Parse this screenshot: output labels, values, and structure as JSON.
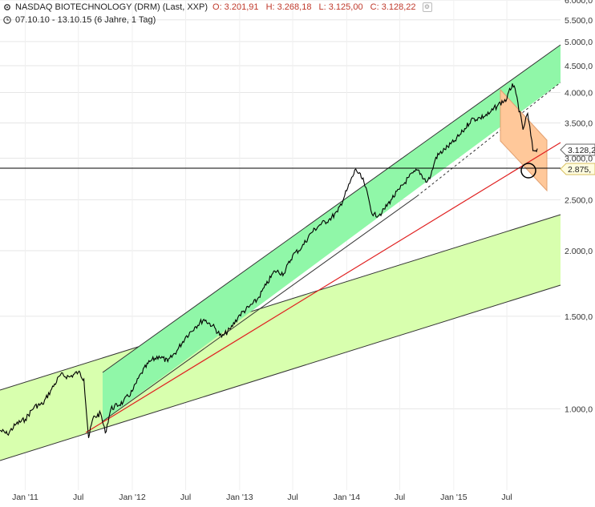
{
  "header": {
    "title": "NASDAQ BIOTECHNOLOGY (DRM) (Last, XXP)",
    "open": "O: 3.201,91",
    "high": "H: 3.268,18",
    "low": "L: 3.125,00",
    "close": "C: 3.128,22",
    "range": "07.10.10 - 13.10.15 (6 Jahre, 1 Tag)",
    "settings_icon": "gear-icon",
    "clock_icon": "clock-icon"
  },
  "chart_data": {
    "type": "line",
    "title": "NASDAQ BIOTECHNOLOGY (DRM) (Last, XXP)",
    "y_scale": "log",
    "ylim": [
      700,
      6000
    ],
    "y_ticks": [
      {
        "value": 1000,
        "label": "1.000,0"
      },
      {
        "value": 1500,
        "label": "1.500,0"
      },
      {
        "value": 2000,
        "label": "2.000,0"
      },
      {
        "value": 2500,
        "label": "2.500,0"
      },
      {
        "value": 3000,
        "label": "3.000,0"
      },
      {
        "value": 3500,
        "label": "3.500,0"
      },
      {
        "value": 4000,
        "label": "4.000,0"
      },
      {
        "value": 4500,
        "label": "4.500,0"
      },
      {
        "value": 5000,
        "label": "5.000,0"
      },
      {
        "value": 5500,
        "label": "5.500,0"
      },
      {
        "value": 6000,
        "label": "6.000,0"
      }
    ],
    "xlim": [
      "2010-10-07",
      "2015-12-31"
    ],
    "x_ticks": [
      {
        "value": "2011-01-01",
        "label": "Jan '11"
      },
      {
        "value": "2011-07-01",
        "label": "Jul"
      },
      {
        "value": "2012-01-01",
        "label": "Jan '12"
      },
      {
        "value": "2012-07-01",
        "label": "Jul"
      },
      {
        "value": "2013-01-01",
        "label": "Jan '13"
      },
      {
        "value": "2013-07-01",
        "label": "Jul"
      },
      {
        "value": "2014-01-01",
        "label": "Jan '14"
      },
      {
        "value": "2014-07-01",
        "label": "Jul"
      },
      {
        "value": "2015-01-01",
        "label": "Jan '15"
      },
      {
        "value": "2015-07-01",
        "label": "Jul"
      }
    ],
    "series": [
      {
        "color": "#000000",
        "points": [
          [
            "2010-10-07",
            910
          ],
          [
            "2010-11-01",
            895
          ],
          [
            "2010-12-01",
            935
          ],
          [
            "2011-01-01",
            955
          ],
          [
            "2011-02-01",
            1010
          ],
          [
            "2011-03-01",
            1020
          ],
          [
            "2011-04-01",
            1090
          ],
          [
            "2011-05-01",
            1160
          ],
          [
            "2011-06-01",
            1150
          ],
          [
            "2011-07-01",
            1175
          ],
          [
            "2011-07-20",
            1140
          ],
          [
            "2011-08-05",
            880
          ],
          [
            "2011-08-20",
            960
          ],
          [
            "2011-09-15",
            980
          ],
          [
            "2011-10-01",
            900
          ],
          [
            "2011-10-20",
            1000
          ],
          [
            "2011-12-01",
            1030
          ],
          [
            "2012-01-01",
            1080
          ],
          [
            "2012-02-01",
            1170
          ],
          [
            "2012-03-01",
            1230
          ],
          [
            "2012-04-01",
            1260
          ],
          [
            "2012-05-01",
            1230
          ],
          [
            "2012-06-01",
            1290
          ],
          [
            "2012-07-01",
            1370
          ],
          [
            "2012-08-01",
            1430
          ],
          [
            "2012-09-01",
            1480
          ],
          [
            "2012-10-01",
            1440
          ],
          [
            "2012-11-01",
            1370
          ],
          [
            "2012-12-01",
            1420
          ],
          [
            "2013-01-01",
            1510
          ],
          [
            "2013-02-01",
            1560
          ],
          [
            "2013-03-01",
            1610
          ],
          [
            "2013-04-01",
            1720
          ],
          [
            "2013-05-01",
            1830
          ],
          [
            "2013-06-01",
            1810
          ],
          [
            "2013-07-01",
            1960
          ],
          [
            "2013-08-01",
            2030
          ],
          [
            "2013-09-01",
            2160
          ],
          [
            "2013-10-01",
            2240
          ],
          [
            "2013-11-01",
            2290
          ],
          [
            "2013-12-01",
            2370
          ],
          [
            "2014-01-01",
            2600
          ],
          [
            "2014-02-01",
            2860
          ],
          [
            "2014-03-01",
            2700
          ],
          [
            "2014-04-01",
            2330
          ],
          [
            "2014-05-01",
            2360
          ],
          [
            "2014-06-01",
            2500
          ],
          [
            "2014-07-01",
            2620
          ],
          [
            "2014-08-01",
            2760
          ],
          [
            "2014-09-01",
            2850
          ],
          [
            "2014-10-01",
            2700
          ],
          [
            "2014-10-15",
            2780
          ],
          [
            "2014-11-01",
            3010
          ],
          [
            "2014-12-01",
            3120
          ],
          [
            "2015-01-01",
            3220
          ],
          [
            "2015-02-01",
            3370
          ],
          [
            "2015-03-01",
            3550
          ],
          [
            "2015-04-01",
            3580
          ],
          [
            "2015-05-01",
            3640
          ],
          [
            "2015-06-01",
            3790
          ],
          [
            "2015-07-01",
            3890
          ],
          [
            "2015-07-20",
            4160
          ],
          [
            "2015-08-01",
            3980
          ],
          [
            "2015-08-25",
            3400
          ],
          [
            "2015-09-10",
            3650
          ],
          [
            "2015-09-28",
            3100
          ],
          [
            "2015-10-13",
            3128
          ]
        ]
      }
    ],
    "annotations": {
      "last_price_tag": "3.128,2",
      "support_tag": "2.875,",
      "horizontal_level": 2875
    },
    "colors": {
      "outer_channel": "#d8ffae",
      "inner_channel": "#90f7a8",
      "correction_channel": "#ffc89a",
      "trendline": "#e02020",
      "grid": "#e6e6e6"
    },
    "grid": true
  }
}
